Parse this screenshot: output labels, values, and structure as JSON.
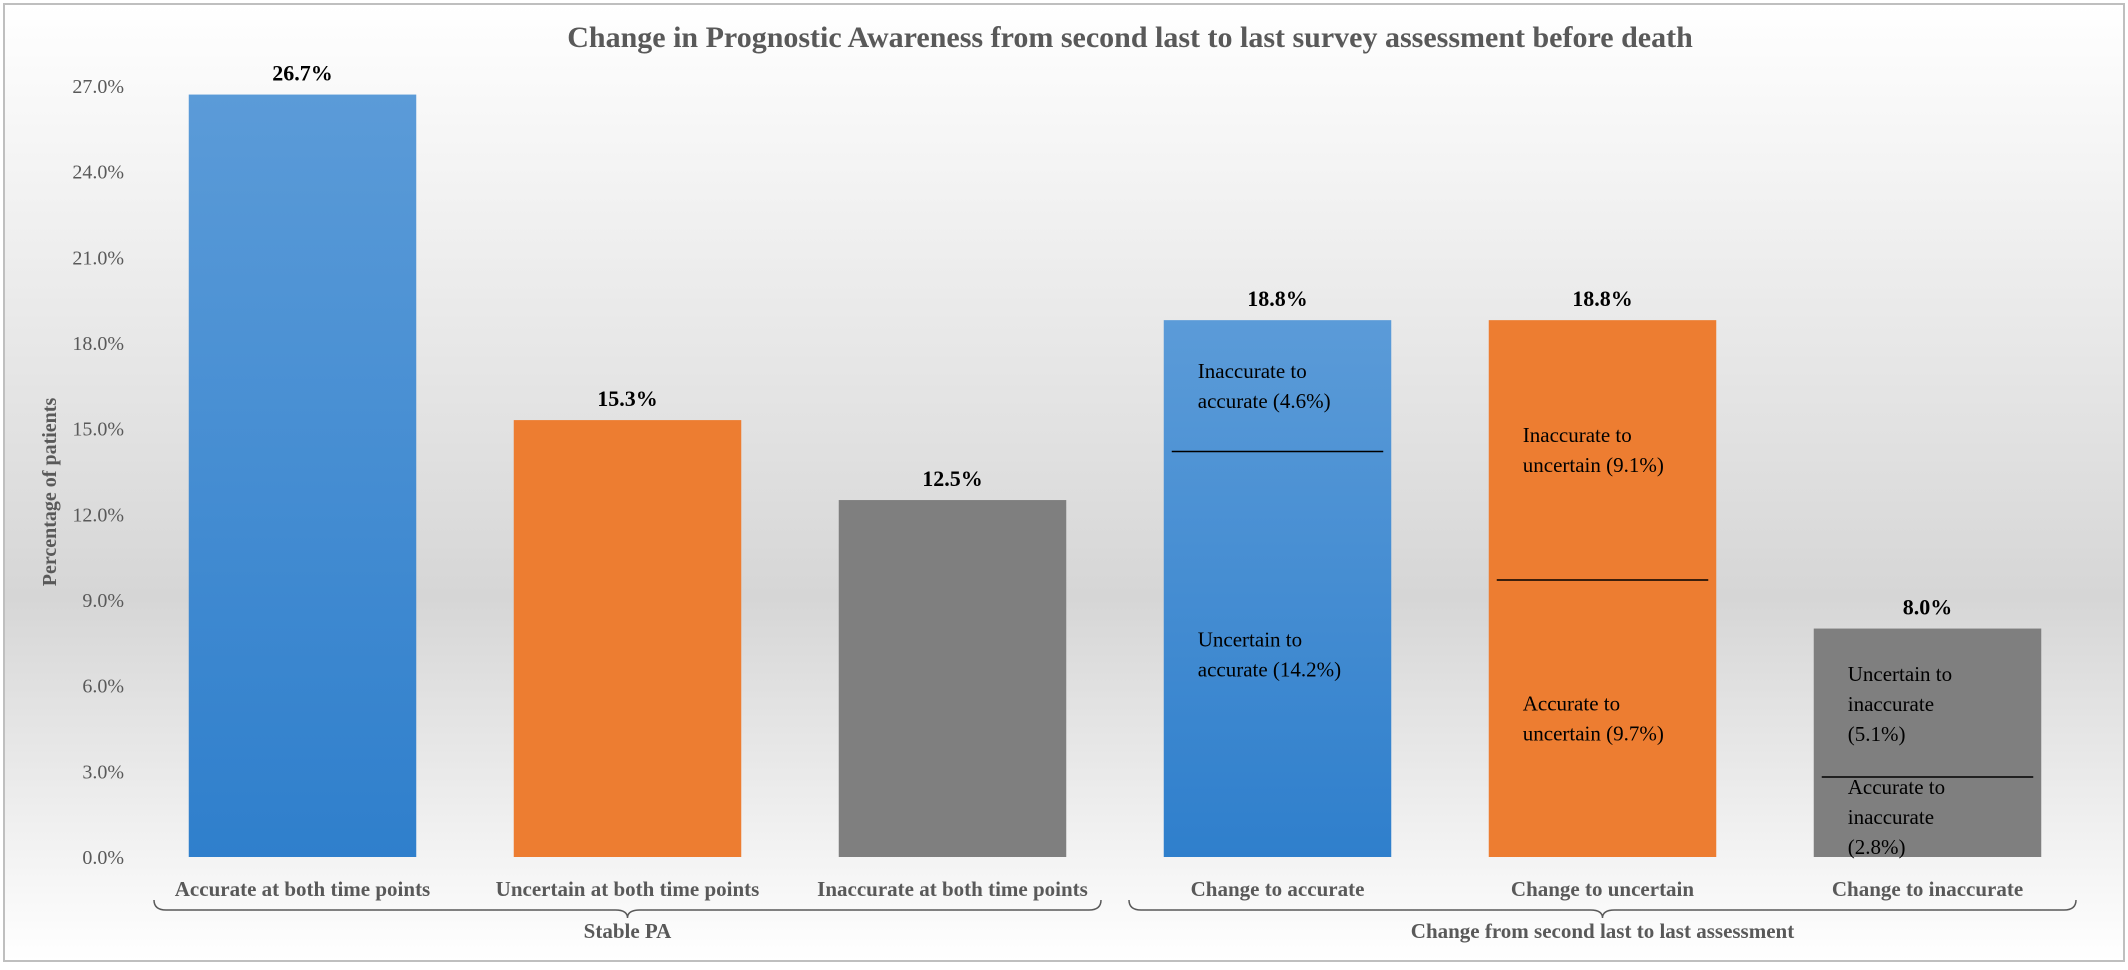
{
  "chart_data": {
    "type": "bar",
    "title": "Change in Prognostic Awareness from second last to last survey assessment before death",
    "ylabel": "Percentage of patients",
    "xlabel": "",
    "ylim": [
      0,
      27
    ],
    "yticks": [
      0,
      3,
      6,
      9,
      12,
      15,
      18,
      21,
      24,
      27
    ],
    "ytick_labels": [
      "0.0%",
      "3.0%",
      "6.0%",
      "9.0%",
      "12.0%",
      "15.0%",
      "18.0%",
      "21.0%",
      "24.0%",
      "27.0%"
    ],
    "grid": false,
    "legend": "none",
    "categories": [
      "Accurate at both time points",
      "Uncertain at both time points",
      "Inaccurate at both time points",
      "Change to accurate",
      "Change to uncertain",
      "Change to inaccurate"
    ],
    "values": [
      26.7,
      15.3,
      12.5,
      18.8,
      18.8,
      8.0
    ],
    "value_labels": [
      "26.7%",
      "15.3%",
      "12.5%",
      "18.8%",
      "18.8%",
      "8.0%"
    ],
    "bar_colors": [
      "#4a8fd8",
      "#ed7d31",
      "#7f7f7f",
      "#4a8fd8",
      "#ed7d31",
      "#7f7f7f"
    ],
    "segments": [
      null,
      null,
      null,
      [
        {
          "label": "Uncertain to accurate (14.2%)",
          "value": 14.2
        },
        {
          "label": "Inaccurate to accurate (4.6%)",
          "value": 4.6
        }
      ],
      [
        {
          "label": "Accurate to uncertain (9.7%)",
          "value": 9.7
        },
        {
          "label": "Inaccurate to uncertain (9.1%)",
          "value": 9.1
        }
      ],
      [
        {
          "label": "Accurate to inaccurate (2.8%)",
          "value": 2.8
        },
        {
          "label": "Uncertain to inaccurate (5.1%)",
          "value": 5.1
        }
      ]
    ],
    "groups": [
      {
        "label": "Stable PA",
        "from": 0,
        "to": 2
      },
      {
        "label": "Change from second last to last assessment",
        "from": 3,
        "to": 5
      }
    ]
  }
}
